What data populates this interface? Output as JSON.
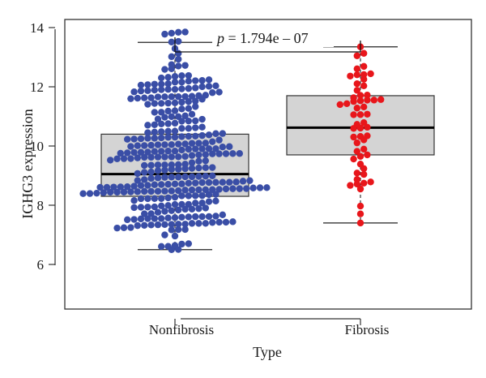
{
  "chart_data": {
    "type": "box",
    "title": "",
    "xlabel": "Type",
    "ylabel": "IGHG3 expression",
    "ylim": [
      4.5,
      14.3
    ],
    "yticks": [
      "6",
      "8",
      "10",
      "12",
      "14"
    ],
    "categories": [
      "Nonfibrosis",
      "Fibrosis"
    ],
    "annotation": {
      "p_prefix": "p",
      "p_rest": " = 1.794e – 07"
    },
    "groups": [
      {
        "name": "Nonfibrosis",
        "color": "#3a4ea6",
        "whisker_low": 6.5,
        "q1": 8.3,
        "median": 9.05,
        "q3": 10.4,
        "whisker_high": 13.5,
        "n_points": 330,
        "point_min": 6.5,
        "point_max": 13.85
      },
      {
        "name": "Fibrosis",
        "color": "#e8161b",
        "whisker_low": 7.4,
        "q1": 9.7,
        "median": 10.62,
        "q3": 11.7,
        "whisker_high": 13.35,
        "n_points": 56,
        "point_min": 7.4,
        "point_max": 13.35
      }
    ],
    "box_fill": "#d4d4d4",
    "grid": false,
    "legend": "none"
  }
}
